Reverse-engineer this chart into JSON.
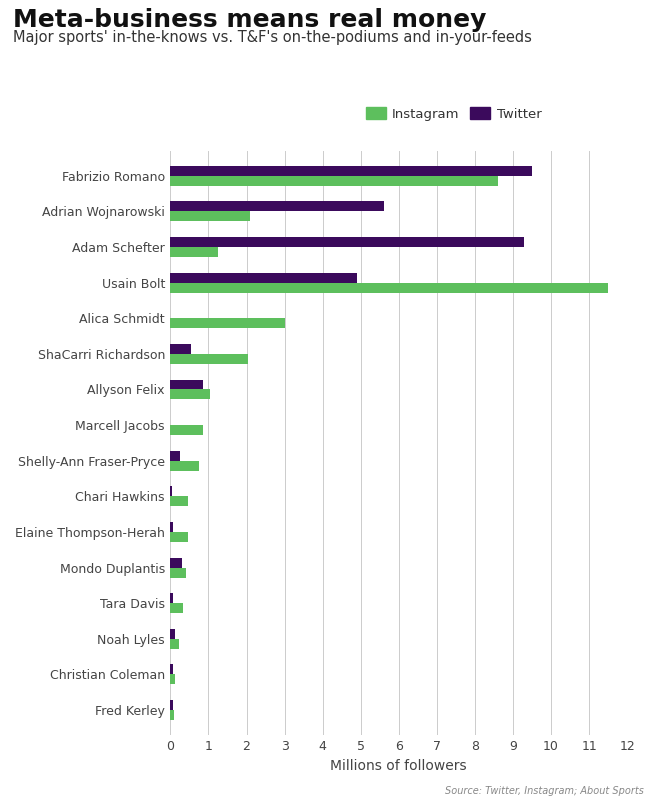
{
  "title": "Meta-business means real money",
  "subtitle": "Major sports' in-the-knows vs. T&F's on-the-podiums and in-your-feeds",
  "xlabel": "Millions of followers",
  "source": "Source: Twitter, Instagram; About Sports",
  "legend_labels": [
    "Instagram",
    "Twitter"
  ],
  "instagram_color": "#5dbf5d",
  "twitter_color": "#3b0a5c",
  "background_color": "#ffffff",
  "grid_color": "#cccccc",
  "names": [
    "Fabrizio Romano",
    "Adrian Wojnarowski",
    "Adam Schefter",
    "Usain Bolt",
    "Alica Schmidt",
    "ShaCarri Richardson",
    "Allyson Felix",
    "Marcell Jacobs",
    "Shelly-Ann Fraser-Pryce",
    "Chari Hawkins",
    "Elaine Thompson-Herah",
    "Mondo Duplantis",
    "Tara Davis",
    "Noah Lyles",
    "Christian Coleman",
    "Fred Kerley"
  ],
  "twitter": [
    9.5,
    5.6,
    9.3,
    4.9,
    0.0,
    0.55,
    0.85,
    0.0,
    0.25,
    0.04,
    0.08,
    0.3,
    0.08,
    0.12,
    0.06,
    0.08
  ],
  "instagram": [
    8.6,
    2.1,
    1.25,
    11.5,
    3.0,
    2.05,
    1.05,
    0.85,
    0.75,
    0.45,
    0.45,
    0.42,
    0.32,
    0.22,
    0.13,
    0.09
  ],
  "xlim": [
    0,
    12
  ],
  "xticks": [
    0,
    1,
    2,
    3,
    4,
    5,
    6,
    7,
    8,
    9,
    10,
    11,
    12
  ],
  "bar_height": 0.28,
  "title_fontsize": 18,
  "subtitle_fontsize": 10.5,
  "tick_fontsize": 9,
  "xlabel_fontsize": 10
}
